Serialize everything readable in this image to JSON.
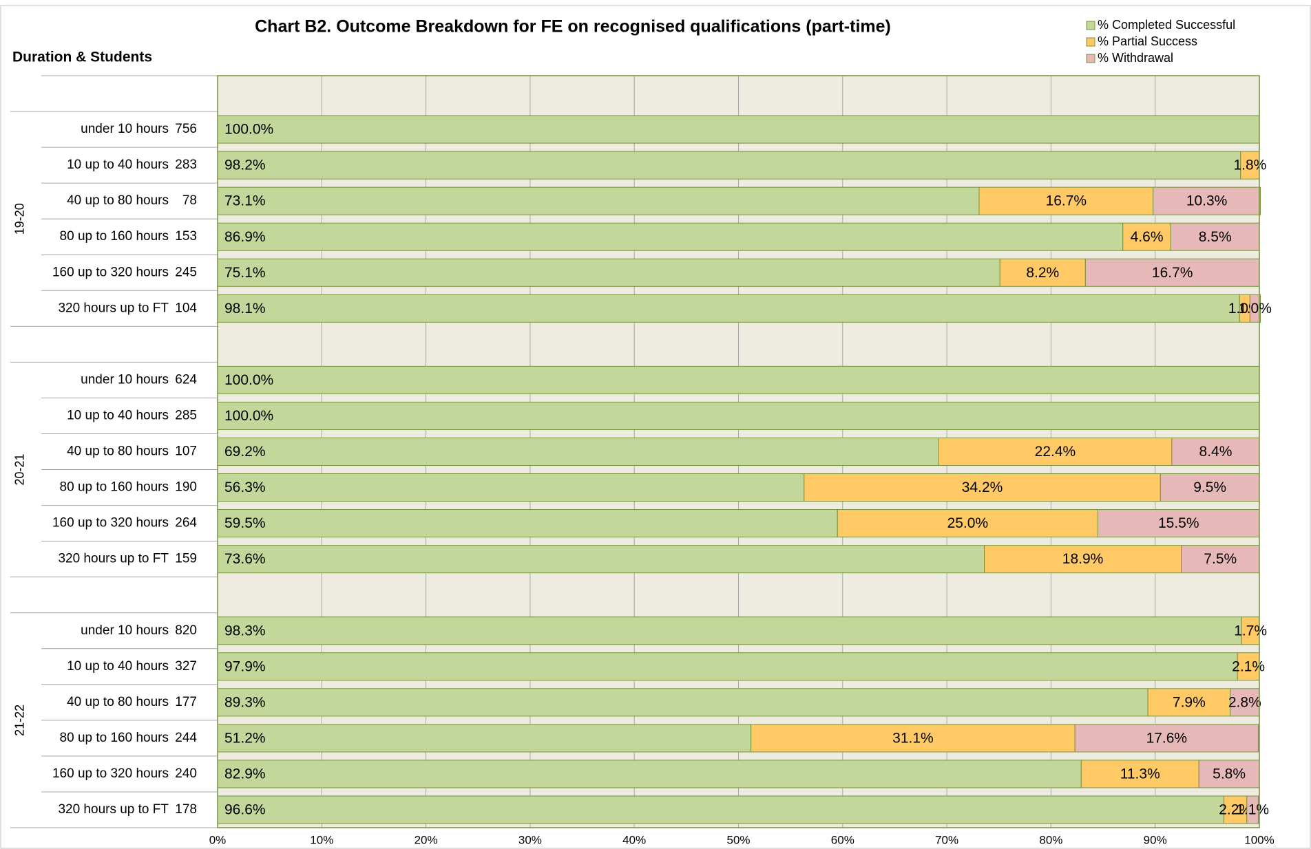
{
  "chart_data": {
    "type": "stacked-barh",
    "title": "Chart B2. Outcome Breakdown for FE on recognised qualifications (part-time)",
    "y_axis_label": "Duration & Students",
    "groups": [
      "19-20",
      "20-21",
      "21-22"
    ],
    "categories": [
      null,
      "under 10 hours",
      "10 up to 40 hours",
      "40 up to 80 hours",
      "80 up to 160 hours",
      "160 up to 320 hours",
      "320 hours up to FT",
      null,
      "under 10 hours",
      "10 up to 40 hours",
      "40 up to 80 hours",
      "80 up to 160 hours",
      "160 up to 320 hours",
      "320 hours up to FT",
      null,
      "under 10 hours",
      "10 up to 40 hours",
      "40 up to 80 hours",
      "80 up to 160 hours",
      "160 up to 320 hours",
      "320 hours up to FT"
    ],
    "students": [
      null,
      756,
      283,
      78,
      153,
      245,
      104,
      null,
      624,
      285,
      107,
      190,
      264,
      159,
      null,
      820,
      327,
      177,
      244,
      240,
      178
    ],
    "series": [
      {
        "name": "% Completed Successful",
        "color": "#c4d79b",
        "values": [
          null,
          100.0,
          98.2,
          73.1,
          86.9,
          75.1,
          98.1,
          null,
          100.0,
          100.0,
          69.2,
          56.3,
          59.5,
          73.6,
          null,
          98.3,
          97.9,
          89.3,
          51.2,
          82.9,
          96.6
        ],
        "value_labels": [
          null,
          "100.0%",
          "98.2%",
          "73.1%",
          "86.9%",
          "75.1%",
          "98.1%",
          null,
          "100.0%",
          "100.0%",
          "69.2%",
          "56.3%",
          "59.5%",
          "73.6%",
          null,
          "98.3%",
          "97.9%",
          "89.3%",
          "51.2%",
          "82.9%",
          "96.6%"
        ]
      },
      {
        "name": "% Partial Success",
        "color": "#ffc966",
        "values": [
          null,
          0,
          1.8,
          16.7,
          4.6,
          8.2,
          1.0,
          null,
          0,
          0,
          22.4,
          34.2,
          25.0,
          18.9,
          null,
          1.7,
          2.1,
          7.9,
          31.1,
          11.3,
          2.2
        ],
        "value_labels": [
          null,
          null,
          "1.8%",
          "16.7%",
          "4.6%",
          "8.2%",
          "1.0%",
          null,
          null,
          null,
          "22.4%",
          "34.2%",
          "25.0%",
          "18.9%",
          null,
          "1.7%",
          "2.1%",
          "7.9%",
          "31.1%",
          "11.3%",
          "2.2%"
        ]
      },
      {
        "name": "% Withdrawal",
        "color": "#e6b8b7",
        "values": [
          null,
          0,
          0,
          10.3,
          8.5,
          16.7,
          1.0,
          null,
          0,
          0,
          8.4,
          9.5,
          15.5,
          7.5,
          null,
          0,
          0,
          2.8,
          17.6,
          5.8,
          1.1
        ],
        "value_labels": [
          null,
          null,
          null,
          "10.3%",
          "8.5%",
          "16.7%",
          "1.0%",
          null,
          null,
          null,
          "8.4%",
          "9.5%",
          "15.5%",
          "7.5%",
          null,
          null,
          null,
          "2.8%",
          "17.6%",
          "5.8%",
          "1.1%"
        ]
      }
    ],
    "xlim": [
      0,
      100
    ],
    "xticks": [
      {
        "value": 0,
        "label": "0%"
      },
      {
        "value": 10,
        "label": "10%"
      },
      {
        "value": 20,
        "label": "20%"
      },
      {
        "value": 30,
        "label": "30%"
      },
      {
        "value": 40,
        "label": "40%"
      },
      {
        "value": 50,
        "label": "50%"
      },
      {
        "value": 60,
        "label": "60%"
      },
      {
        "value": 70,
        "label": "70%"
      },
      {
        "value": 80,
        "label": "80%"
      },
      {
        "value": 90,
        "label": "90%"
      },
      {
        "value": 100,
        "label": "100%"
      }
    ],
    "grid": true,
    "legend": "top-right"
  }
}
